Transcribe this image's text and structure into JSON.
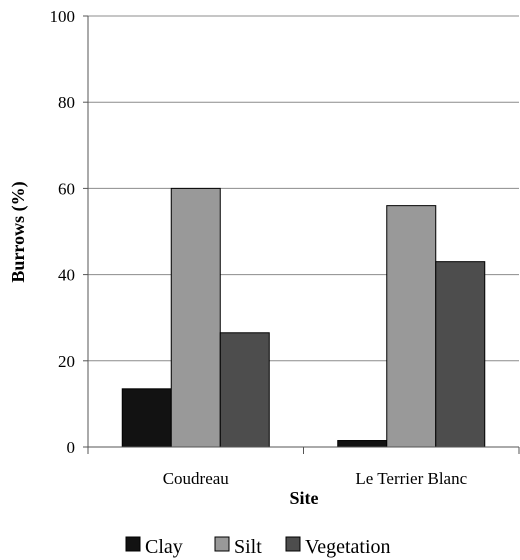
{
  "chart_data": {
    "type": "bar",
    "categories": [
      "Coudreau",
      "Le Terrier Blanc"
    ],
    "series": [
      {
        "name": "Clay",
        "values": [
          13.5,
          1.5
        ],
        "color": "#121212"
      },
      {
        "name": "Silt",
        "values": [
          60,
          56
        ],
        "color": "#999999"
      },
      {
        "name": "Vegetation",
        "values": [
          26.5,
          43
        ],
        "color": "#4d4d4d"
      }
    ],
    "xlabel": "Site",
    "ylabel": "Burrows (%)",
    "ylim": [
      0,
      100
    ],
    "yticks": [
      0,
      20,
      40,
      60,
      80,
      100
    ],
    "grid": "horizontal",
    "legend": "bottom"
  }
}
